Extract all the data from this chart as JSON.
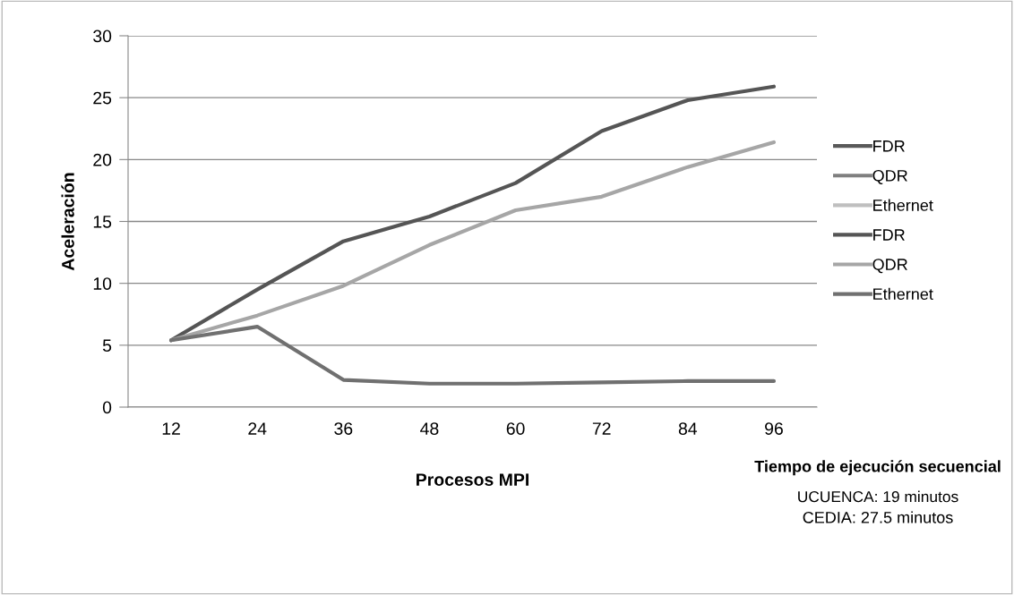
{
  "chart_data": {
    "type": "line",
    "xlabel": "Procesos MPI",
    "ylabel": "Aceleración",
    "categories": [
      "12",
      "24",
      "36",
      "48",
      "60",
      "72",
      "84",
      "96"
    ],
    "series": [
      {
        "name": "FDR",
        "color": "#595959",
        "values": [
          null,
          null,
          null,
          null,
          null,
          null,
          null,
          null
        ]
      },
      {
        "name": "QDR",
        "color": "#7f7f7f",
        "values": [
          null,
          null,
          null,
          null,
          null,
          null,
          null,
          null
        ]
      },
      {
        "name": "Ethernet",
        "color": "#bfbfbf",
        "values": [
          null,
          null,
          null,
          null,
          null,
          null,
          null,
          null
        ]
      },
      {
        "name": "FDR",
        "color": "#555555",
        "values": [
          5.4,
          9.5,
          13.4,
          15.4,
          18.1,
          22.3,
          24.8,
          25.9
        ]
      },
      {
        "name": "QDR",
        "color": "#a6a6a6",
        "values": [
          5.4,
          7.4,
          9.8,
          13.1,
          15.9,
          17.0,
          19.4,
          21.4
        ]
      },
      {
        "name": "Ethernet",
        "color": "#707070",
        "values": [
          5.4,
          6.5,
          2.2,
          1.9,
          1.9,
          2.0,
          2.1,
          2.1
        ]
      }
    ],
    "ylim": [
      0,
      30
    ],
    "yticks": [
      0,
      5,
      10,
      15,
      20,
      25,
      30
    ],
    "grid": "y",
    "legend": "right",
    "marker": "none",
    "line_style": "solid",
    "annotations": [
      "Tiempo de ejecución secuencial",
      "UCUENCA: 19 minutos",
      "CEDIA: 27.5 minutos"
    ]
  }
}
